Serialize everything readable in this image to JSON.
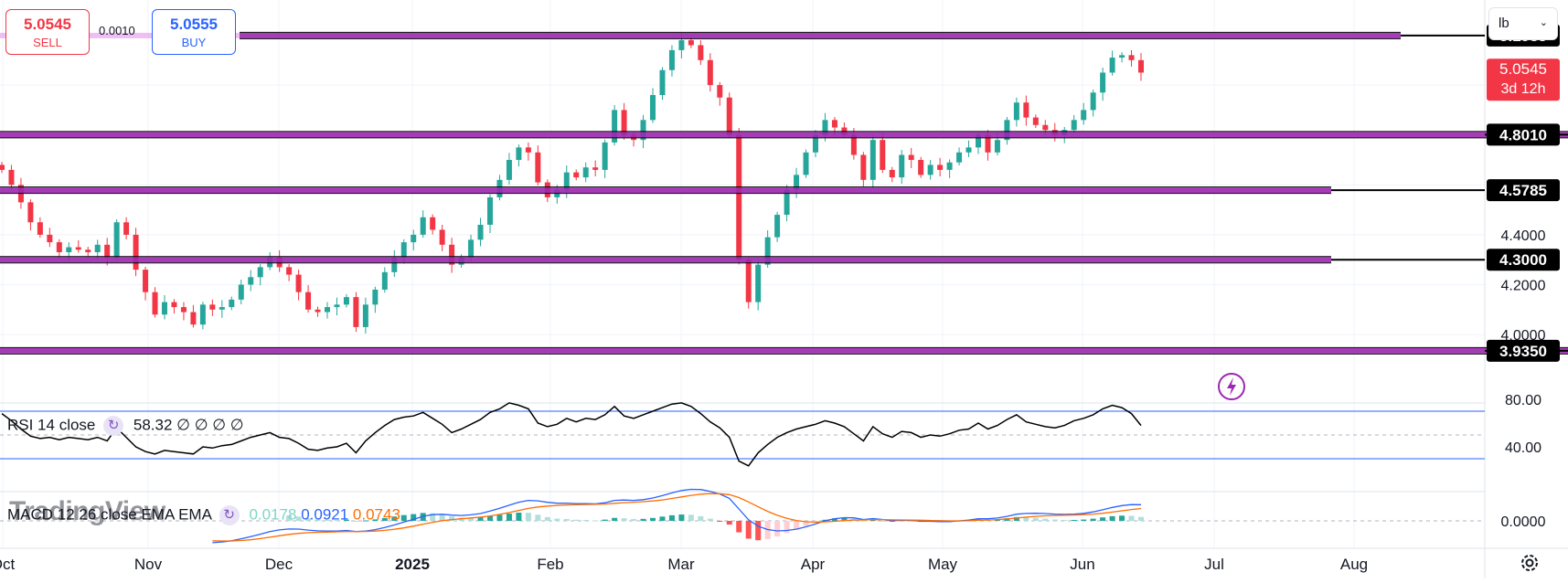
{
  "trade_panel": {
    "sell_price": "5.0545",
    "sell_label": "SELL",
    "spread": "0.0010",
    "buy_price": "5.0555",
    "buy_label": "BUY"
  },
  "unit_selector": {
    "value": "lb"
  },
  "watermark": "TradingView",
  "colors": {
    "up": "#26a69a",
    "down": "#f23645",
    "level_line": "#9c27b0",
    "rsi_line": "#000000",
    "rsi_band": "#2962ff",
    "macd_line": "#2962ff",
    "signal_line": "#ff6d00"
  },
  "chart_data": [
    {
      "type": "candlestick",
      "timeframe": "daily",
      "x_axis_labels": [
        "Oct",
        "Nov",
        "Dec",
        "2025",
        "Feb",
        "Mar",
        "Apr",
        "May",
        "Jun",
        "Jul",
        "Aug"
      ],
      "y_ticks": [
        "4.4000",
        "4.2000",
        "4.0000"
      ],
      "ylim": [
        3.86,
        5.27
      ],
      "levels": [
        {
          "value": 5.1985,
          "label": "5.1985"
        },
        {
          "value": 4.801,
          "label": "4.8010"
        },
        {
          "value": 4.5785,
          "label": "4.5785"
        },
        {
          "value": 4.3,
          "label": "4.3000"
        },
        {
          "value": 3.935,
          "label": "3.9350"
        }
      ],
      "last_price": {
        "value": 5.0545,
        "label": "5.0545",
        "countdown": "3d 12h"
      },
      "closes": [
        4.66,
        4.6,
        4.53,
        4.45,
        4.4,
        4.37,
        4.33,
        4.35,
        4.34,
        4.33,
        4.36,
        4.31,
        4.45,
        4.4,
        4.26,
        4.17,
        4.08,
        4.13,
        4.11,
        4.09,
        4.04,
        4.12,
        4.1,
        4.11,
        4.14,
        4.2,
        4.23,
        4.27,
        4.31,
        4.27,
        4.24,
        4.17,
        4.1,
        4.09,
        4.11,
        4.12,
        4.15,
        4.03,
        4.12,
        4.18,
        4.25,
        4.31,
        4.37,
        4.4,
        4.47,
        4.42,
        4.36,
        4.28,
        4.31,
        4.38,
        4.44,
        4.55,
        4.62,
        4.7,
        4.75,
        4.73,
        4.61,
        4.55,
        4.58,
        4.65,
        4.63,
        4.67,
        4.66,
        4.77,
        4.9,
        4.8,
        4.78,
        4.86,
        4.96,
        5.06,
        5.14,
        5.18,
        5.16,
        5.1,
        5.0,
        4.95,
        4.8,
        4.3,
        4.13,
        4.28,
        4.39,
        4.48,
        4.58,
        4.64,
        4.73,
        4.8,
        4.86,
        4.83,
        4.8,
        4.72,
        4.62,
        4.78,
        4.66,
        4.63,
        4.72,
        4.7,
        4.64,
        4.68,
        4.66,
        4.69,
        4.73,
        4.75,
        4.8,
        4.73,
        4.78,
        4.86,
        4.93,
        4.87,
        4.84,
        4.82,
        4.8,
        4.82,
        4.86,
        4.9,
        4.97,
        5.05,
        5.11,
        5.12,
        5.1,
        5.05
      ],
      "rsi": {
        "name": "RSI 14 close",
        "value": "58.32",
        "extra_values": [
          "∅",
          "∅",
          "∅",
          "∅"
        ],
        "y_ticks": [
          "80.00",
          "40.00"
        ],
        "ylim": [
          20,
          86
        ],
        "bands": [
          70,
          30
        ],
        "midline": 50,
        "values": [
          68,
          62,
          55,
          49,
          47,
          48,
          46,
          48,
          47,
          46,
          48,
          45,
          56,
          48,
          40,
          36,
          34,
          37,
          36,
          35,
          34,
          40,
          39,
          41,
          42,
          45,
          48,
          50,
          52,
          48,
          47,
          43,
          38,
          37,
          39,
          40,
          43,
          35,
          45,
          52,
          58,
          63,
          65,
          66,
          69,
          64,
          59,
          52,
          55,
          59,
          63,
          69,
          72,
          77,
          75,
          72,
          60,
          57,
          59,
          64,
          61,
          64,
          63,
          67,
          74,
          66,
          64,
          67,
          70,
          73,
          76,
          77,
          74,
          68,
          61,
          56,
          48,
          28,
          24,
          35,
          42,
          48,
          52,
          55,
          57,
          59,
          62,
          60,
          57,
          51,
          45,
          57,
          51,
          48,
          53,
          52,
          48,
          50,
          49,
          51,
          54,
          55,
          60,
          55,
          58,
          63,
          67,
          61,
          59,
          57,
          56,
          58,
          62,
          64,
          67,
          72,
          75,
          73,
          68,
          58
        ]
      },
      "macd": {
        "name": "MACD 12 26 close EMA EMA",
        "histogram_value": "0.0178",
        "macd_value": "0.0921",
        "signal_value": "0.0743",
        "y_ticks": [
          "0.0000"
        ]
      }
    }
  ]
}
